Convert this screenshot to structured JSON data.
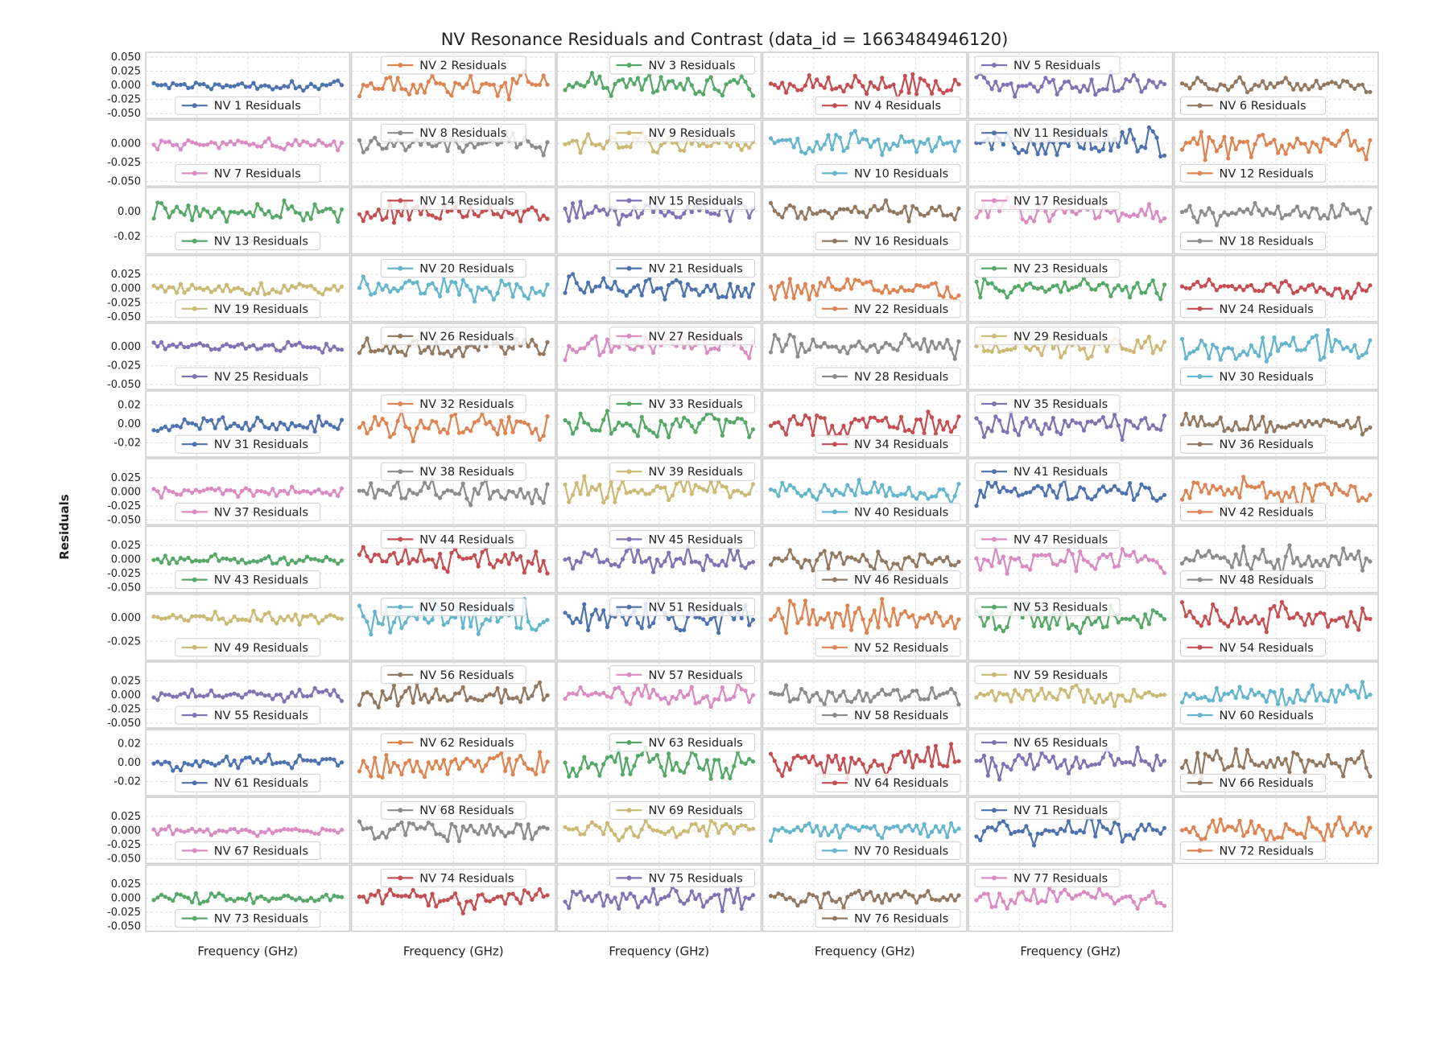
{
  "figure": {
    "title": "NV Resonance Residuals and Contrast (data_id = 1663484946120)",
    "ylabel": "Residuals",
    "xlabel": "Frequency (GHz)"
  },
  "chart_data": {
    "type": "line",
    "layout": {
      "rows": 13,
      "cols": 6,
      "n_panels": 77
    },
    "title": "NV Resonance Residuals and Contrast (data_id = 1663484946120)",
    "xlabel": "Frequency (GHz)",
    "ylabel": "Residuals",
    "grid": true,
    "points_per_series": 50,
    "palette": [
      "#4C72B0",
      "#DD8452",
      "#55A868",
      "#C44E52",
      "#8172B3",
      "#937860",
      "#DA8BC3",
      "#8C8C8C",
      "#CCB974",
      "#64B5CD"
    ],
    "left_column_ticks": [
      [
        "0.050",
        "0.025",
        "0.000",
        "-0.025",
        "-0.050"
      ],
      [
        "0.000",
        "-0.025",
        "-0.050"
      ],
      [
        "0.00",
        "-0.02"
      ],
      [
        "0.025",
        "0.000",
        "-0.025",
        "-0.050"
      ],
      [
        "0.000",
        "-0.025",
        "-0.050"
      ],
      [
        "0.02",
        "0.00",
        "-0.02"
      ],
      [
        "0.025",
        "0.000",
        "-0.025",
        "-0.050"
      ],
      [
        "0.025",
        "0.000",
        "-0.025",
        "-0.050"
      ],
      [
        "0.000",
        "-0.025"
      ],
      [
        "0.025",
        "0.000",
        "-0.025",
        "-0.050"
      ],
      [
        "0.02",
        "0.00",
        "-0.02"
      ],
      [
        "0.025",
        "0.000",
        "-0.025",
        "-0.050"
      ],
      [
        "0.025",
        "0.000",
        "-0.025",
        "-0.050"
      ]
    ],
    "left_column_ylim": [
      [
        -0.05,
        0.05
      ],
      [
        -0.05,
        0.025
      ],
      [
        -0.03,
        0.015
      ],
      [
        -0.05,
        0.05
      ],
      [
        -0.05,
        0.025
      ],
      [
        -0.03,
        0.03
      ],
      [
        -0.05,
        0.05
      ],
      [
        -0.05,
        0.05
      ],
      [
        -0.04,
        0.02
      ],
      [
        -0.05,
        0.05
      ],
      [
        -0.03,
        0.03
      ],
      [
        -0.05,
        0.05
      ],
      [
        -0.05,
        0.05
      ]
    ],
    "series": [
      {
        "name": "NV 1 Residuals",
        "amplitude": 0.012
      },
      {
        "name": "NV 2 Residuals",
        "amplitude": 0.03
      },
      {
        "name": "NV 3 Residuals",
        "amplitude": 0.03
      },
      {
        "name": "NV 4 Residuals",
        "amplitude": 0.03
      },
      {
        "name": "NV 5 Residuals",
        "amplitude": 0.03
      },
      {
        "name": "NV 6 Residuals",
        "amplitude": 0.02
      },
      {
        "name": "NV 7 Residuals",
        "amplitude": 0.012
      },
      {
        "name": "NV 8 Residuals",
        "amplitude": 0.018
      },
      {
        "name": "NV 9 Residuals",
        "amplitude": 0.018
      },
      {
        "name": "NV 10 Residuals",
        "amplitude": 0.022
      },
      {
        "name": "NV 11 Residuals",
        "amplitude": 0.03
      },
      {
        "name": "NV 12 Residuals",
        "amplitude": 0.03
      },
      {
        "name": "NV 13 Residuals",
        "amplitude": 0.01
      },
      {
        "name": "NV 14 Residuals",
        "amplitude": 0.012
      },
      {
        "name": "NV 15 Residuals",
        "amplitude": 0.012
      },
      {
        "name": "NV 16 Residuals",
        "amplitude": 0.012
      },
      {
        "name": "NV 17 Residuals",
        "amplitude": 0.012
      },
      {
        "name": "NV 18 Residuals",
        "amplitude": 0.012
      },
      {
        "name": "NV 19 Residuals",
        "amplitude": 0.015
      },
      {
        "name": "NV 20 Residuals",
        "amplitude": 0.03
      },
      {
        "name": "NV 21 Residuals",
        "amplitude": 0.03
      },
      {
        "name": "NV 22 Residuals",
        "amplitude": 0.03
      },
      {
        "name": "NV 23 Residuals",
        "amplitude": 0.025
      },
      {
        "name": "NV 24 Residuals",
        "amplitude": 0.02
      },
      {
        "name": "NV 25 Residuals",
        "amplitude": 0.01
      },
      {
        "name": "NV 26 Residuals",
        "amplitude": 0.02
      },
      {
        "name": "NV 27 Residuals",
        "amplitude": 0.025
      },
      {
        "name": "NV 28 Residuals",
        "amplitude": 0.022
      },
      {
        "name": "NV 29 Residuals",
        "amplitude": 0.02
      },
      {
        "name": "NV 30 Residuals",
        "amplitude": 0.025
      },
      {
        "name": "NV 31 Residuals",
        "amplitude": 0.012
      },
      {
        "name": "NV 32 Residuals",
        "amplitude": 0.022
      },
      {
        "name": "NV 33 Residuals",
        "amplitude": 0.02
      },
      {
        "name": "NV 34 Residuals",
        "amplitude": 0.02
      },
      {
        "name": "NV 35 Residuals",
        "amplitude": 0.022
      },
      {
        "name": "NV 36 Residuals",
        "amplitude": 0.015
      },
      {
        "name": "NV 37 Residuals",
        "amplitude": 0.014
      },
      {
        "name": "NV 38 Residuals",
        "amplitude": 0.03
      },
      {
        "name": "NV 39 Residuals",
        "amplitude": 0.03
      },
      {
        "name": "NV 40 Residuals",
        "amplitude": 0.03
      },
      {
        "name": "NV 41 Residuals",
        "amplitude": 0.03
      },
      {
        "name": "NV 42 Residuals",
        "amplitude": 0.03
      },
      {
        "name": "NV 43 Residuals",
        "amplitude": 0.012
      },
      {
        "name": "NV 44 Residuals",
        "amplitude": 0.03
      },
      {
        "name": "NV 45 Residuals",
        "amplitude": 0.03
      },
      {
        "name": "NV 46 Residuals",
        "amplitude": 0.03
      },
      {
        "name": "NV 47 Residuals",
        "amplitude": 0.03
      },
      {
        "name": "NV 48 Residuals",
        "amplitude": 0.03
      },
      {
        "name": "NV 49 Residuals",
        "amplitude": 0.01
      },
      {
        "name": "NV 50 Residuals",
        "amplitude": 0.025
      },
      {
        "name": "NV 51 Residuals",
        "amplitude": 0.025
      },
      {
        "name": "NV 52 Residuals",
        "amplitude": 0.025
      },
      {
        "name": "NV 53 Residuals",
        "amplitude": 0.025
      },
      {
        "name": "NV 54 Residuals",
        "amplitude": 0.025
      },
      {
        "name": "NV 55 Residuals",
        "amplitude": 0.015
      },
      {
        "name": "NV 56 Residuals",
        "amplitude": 0.03
      },
      {
        "name": "NV 57 Residuals",
        "amplitude": 0.03
      },
      {
        "name": "NV 58 Residuals",
        "amplitude": 0.025
      },
      {
        "name": "NV 59 Residuals",
        "amplitude": 0.03
      },
      {
        "name": "NV 60 Residuals",
        "amplitude": 0.03
      },
      {
        "name": "NV 61 Residuals",
        "amplitude": 0.012
      },
      {
        "name": "NV 62 Residuals",
        "amplitude": 0.025
      },
      {
        "name": "NV 63 Residuals",
        "amplitude": 0.025
      },
      {
        "name": "NV 64 Residuals",
        "amplitude": 0.025
      },
      {
        "name": "NV 65 Residuals",
        "amplitude": 0.025
      },
      {
        "name": "NV 66 Residuals",
        "amplitude": 0.025
      },
      {
        "name": "NV 67 Residuals",
        "amplitude": 0.012
      },
      {
        "name": "NV 68 Residuals",
        "amplitude": 0.03
      },
      {
        "name": "NV 69 Residuals",
        "amplitude": 0.025
      },
      {
        "name": "NV 70 Residuals",
        "amplitude": 0.025
      },
      {
        "name": "NV 71 Residuals",
        "amplitude": 0.03
      },
      {
        "name": "NV 72 Residuals",
        "amplitude": 0.03
      },
      {
        "name": "NV 73 Residuals",
        "amplitude": 0.012
      },
      {
        "name": "NV 74 Residuals",
        "amplitude": 0.03
      },
      {
        "name": "NV 75 Residuals",
        "amplitude": 0.03
      },
      {
        "name": "NV 76 Residuals",
        "amplitude": 0.025
      },
      {
        "name": "NV 77 Residuals",
        "amplitude": 0.03
      }
    ]
  }
}
